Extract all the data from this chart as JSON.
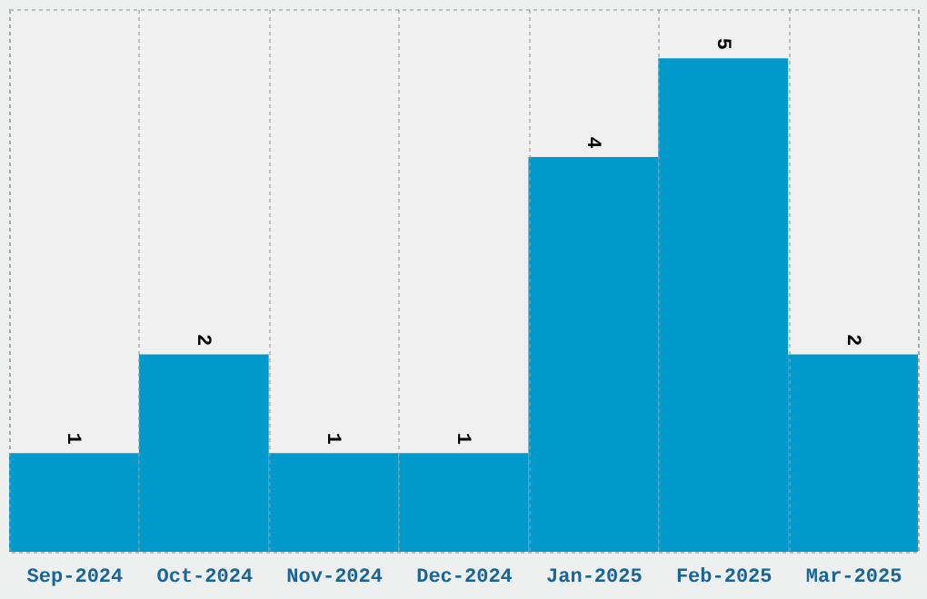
{
  "chart_data": {
    "type": "bar",
    "categories": [
      "Sep-2024",
      "Oct-2024",
      "Nov-2024",
      "Dec-2024",
      "Jan-2025",
      "Feb-2025",
      "Mar-2025"
    ],
    "values": [
      1,
      2,
      1,
      1,
      4,
      5,
      2
    ],
    "color": "#0099cc",
    "ylim": [
      0,
      5.5
    ],
    "grid": "x",
    "data_labels": true,
    "tick_labels": "x"
  }
}
